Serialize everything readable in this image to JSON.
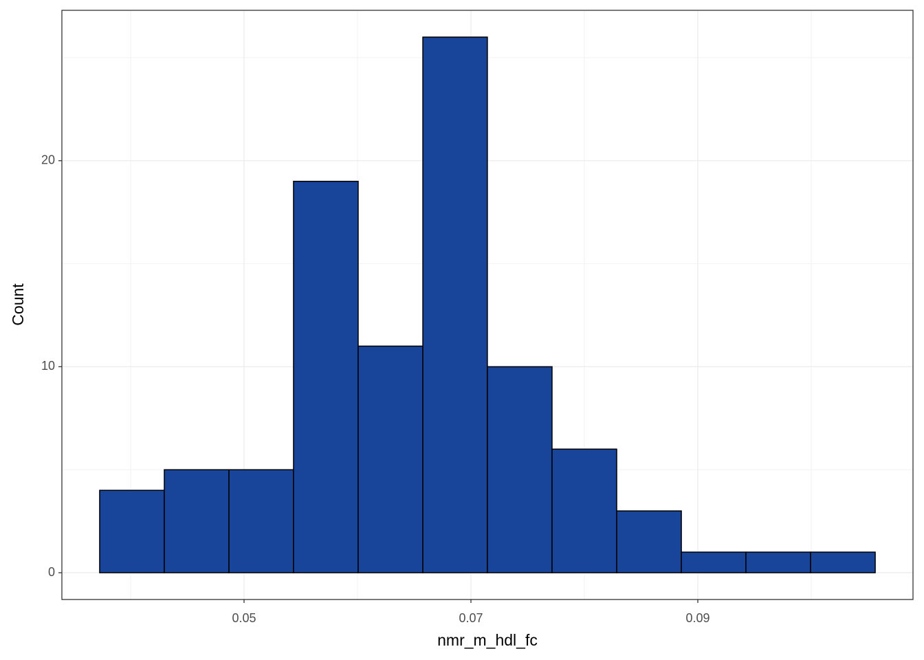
{
  "chart_data": {
    "type": "histogram",
    "x_label": "nmr_m_hdl_fc",
    "y_label": "Count",
    "bins": [
      0.03727,
      0.04297,
      0.04867,
      0.05436,
      0.06006,
      0.06576,
      0.07145,
      0.07715,
      0.08285,
      0.08855,
      0.09424,
      0.09994,
      0.10564
    ],
    "values": [
      4,
      5,
      5,
      19,
      11,
      26,
      10,
      6,
      3,
      1,
      1,
      1
    ],
    "color": "#18449a",
    "edge_color": "#000000",
    "xlim": [
      0.03394,
      0.10897
    ],
    "xticks": [
      0.05,
      0.07,
      0.09
    ],
    "minor_xticks": [
      0.04,
      0.06,
      0.08,
      0.1
    ],
    "ylim": [
      -1.3,
      27.3
    ],
    "yticks": [
      0,
      10,
      20
    ],
    "minor_yticks": [
      5,
      15,
      25
    ],
    "grid": true
  }
}
